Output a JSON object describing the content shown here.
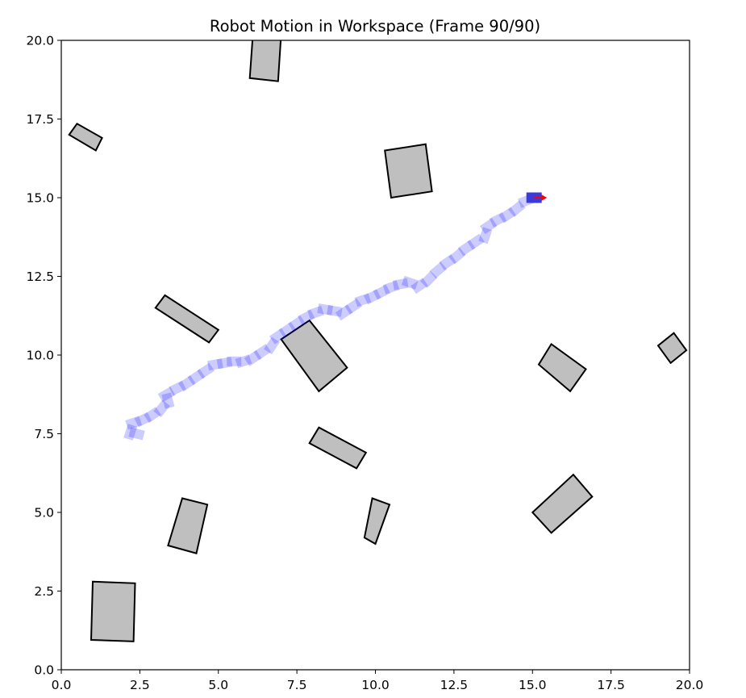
{
  "chart_data": {
    "type": "scatter",
    "title": "Robot Motion in Workspace (Frame 90/90)",
    "xlabel": "",
    "ylabel": "",
    "xlim": [
      0,
      20
    ],
    "ylim": [
      0,
      20
    ],
    "x_ticks": [
      "0.0",
      "2.5",
      "5.0",
      "7.5",
      "10.0",
      "12.5",
      "15.0",
      "17.5",
      "20.0"
    ],
    "y_ticks": [
      "0.0",
      "2.5",
      "5.0",
      "7.5",
      "10.0",
      "12.5",
      "15.0",
      "17.5",
      "20.0"
    ],
    "grid": false,
    "colors": {
      "obstacle_fill": "#bfbfbf",
      "obstacle_edge": "#000000",
      "trail": "#0000ff",
      "robot": "#3b3bdc",
      "heading_arrow": "#ff0000"
    },
    "obstacles": [
      {
        "corners": [
          [
            6.0,
            18.8
          ],
          [
            6.1,
            20.2
          ],
          [
            7.0,
            20.2
          ],
          [
            6.9,
            18.7
          ]
        ]
      },
      {
        "corners": [
          [
            0.25,
            17.0
          ],
          [
            0.5,
            17.35
          ],
          [
            1.3,
            16.9
          ],
          [
            1.1,
            16.5
          ]
        ]
      },
      {
        "corners": [
          [
            10.3,
            16.5
          ],
          [
            11.6,
            16.7
          ],
          [
            11.8,
            15.2
          ],
          [
            10.5,
            15.0
          ]
        ]
      },
      {
        "corners": [
          [
            3.0,
            11.5
          ],
          [
            3.3,
            11.9
          ],
          [
            5.0,
            10.8
          ],
          [
            4.7,
            10.4
          ]
        ]
      },
      {
        "corners": [
          [
            7.0,
            10.5
          ],
          [
            7.9,
            11.1
          ],
          [
            9.1,
            9.6
          ],
          [
            8.2,
            8.85
          ]
        ]
      },
      {
        "corners": [
          [
            15.2,
            9.7
          ],
          [
            15.6,
            10.35
          ],
          [
            16.7,
            9.55
          ],
          [
            16.2,
            8.85
          ]
        ]
      },
      {
        "corners": [
          [
            19.0,
            10.3
          ],
          [
            19.5,
            10.7
          ],
          [
            19.9,
            10.15
          ],
          [
            19.4,
            9.75
          ]
        ]
      },
      {
        "corners": [
          [
            7.9,
            7.2
          ],
          [
            8.2,
            7.7
          ],
          [
            9.7,
            6.9
          ],
          [
            9.4,
            6.4
          ]
        ]
      },
      {
        "corners": [
          [
            3.4,
            3.95
          ],
          [
            3.85,
            5.45
          ],
          [
            4.65,
            5.25
          ],
          [
            4.3,
            3.7
          ]
        ]
      },
      {
        "corners": [
          [
            9.65,
            4.2
          ],
          [
            9.9,
            5.45
          ],
          [
            10.45,
            5.25
          ],
          [
            10.0,
            4.0
          ]
        ]
      },
      {
        "corners": [
          [
            15.0,
            5.0
          ],
          [
            16.3,
            6.2
          ],
          [
            16.9,
            5.5
          ],
          [
            15.6,
            4.35
          ]
        ]
      },
      {
        "corners": [
          [
            1.0,
            2.8
          ],
          [
            2.35,
            2.75
          ],
          [
            2.3,
            0.9
          ],
          [
            0.95,
            0.95
          ]
        ]
      }
    ],
    "path": [
      {
        "x": 2.4,
        "y": 7.5
      },
      {
        "x": 2.2,
        "y": 7.55
      },
      {
        "x": 2.3,
        "y": 7.85
      },
      {
        "x": 2.6,
        "y": 7.95
      },
      {
        "x": 2.9,
        "y": 8.1
      },
      {
        "x": 3.2,
        "y": 8.3
      },
      {
        "x": 3.4,
        "y": 8.55
      },
      {
        "x": 3.35,
        "y": 8.75
      },
      {
        "x": 3.7,
        "y": 8.95
      },
      {
        "x": 4.0,
        "y": 9.1
      },
      {
        "x": 4.3,
        "y": 9.3
      },
      {
        "x": 4.6,
        "y": 9.5
      },
      {
        "x": 4.9,
        "y": 9.7
      },
      {
        "x": 5.2,
        "y": 9.75
      },
      {
        "x": 5.5,
        "y": 9.8
      },
      {
        "x": 5.8,
        "y": 9.8
      },
      {
        "x": 6.1,
        "y": 9.9
      },
      {
        "x": 6.4,
        "y": 10.1
      },
      {
        "x": 6.7,
        "y": 10.3
      },
      {
        "x": 6.9,
        "y": 10.6
      },
      {
        "x": 7.2,
        "y": 10.8
      },
      {
        "x": 7.5,
        "y": 11.0
      },
      {
        "x": 7.8,
        "y": 11.2
      },
      {
        "x": 8.1,
        "y": 11.35
      },
      {
        "x": 8.4,
        "y": 11.45
      },
      {
        "x": 8.7,
        "y": 11.4
      },
      {
        "x": 9.0,
        "y": 11.35
      },
      {
        "x": 9.3,
        "y": 11.55
      },
      {
        "x": 9.6,
        "y": 11.75
      },
      {
        "x": 9.9,
        "y": 11.85
      },
      {
        "x": 10.2,
        "y": 12.0
      },
      {
        "x": 10.5,
        "y": 12.15
      },
      {
        "x": 10.8,
        "y": 12.25
      },
      {
        "x": 11.1,
        "y": 12.3
      },
      {
        "x": 11.4,
        "y": 12.2
      },
      {
        "x": 11.7,
        "y": 12.4
      },
      {
        "x": 12.0,
        "y": 12.7
      },
      {
        "x": 12.3,
        "y": 12.95
      },
      {
        "x": 12.6,
        "y": 13.15
      },
      {
        "x": 12.9,
        "y": 13.4
      },
      {
        "x": 13.2,
        "y": 13.6
      },
      {
        "x": 13.5,
        "y": 13.8
      },
      {
        "x": 13.6,
        "y": 14.1
      },
      {
        "x": 13.9,
        "y": 14.3
      },
      {
        "x": 14.2,
        "y": 14.45
      },
      {
        "x": 14.5,
        "y": 14.65
      },
      {
        "x": 14.8,
        "y": 14.9
      },
      {
        "x": 15.05,
        "y": 15.0
      }
    ],
    "robot": {
      "x": 15.05,
      "y": 15.0,
      "heading_deg": 0
    }
  }
}
